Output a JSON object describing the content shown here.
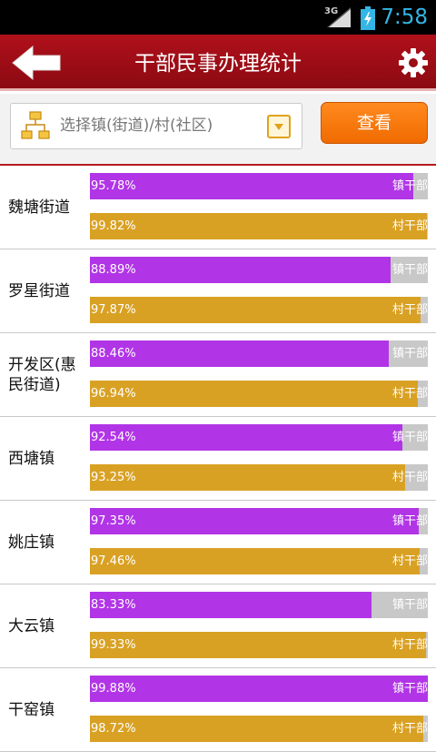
{
  "status_bar": {
    "network": "3G",
    "time": "7:58"
  },
  "header": {
    "title": "干部民事办理统计",
    "back_icon": "arrow-left-icon",
    "settings_icon": "gear-icon"
  },
  "filter": {
    "placeholder": "选择镇(街道)/村(社区)",
    "query_button": "查看"
  },
  "colors": {
    "title_bar": "#9c0d16",
    "town_bar": "#b135e6",
    "village_bar": "#d9a124",
    "query_button": "#f57c0e"
  },
  "legend": {
    "town": "镇干部",
    "village": "村干部"
  },
  "rows": [
    {
      "name": "魏塘街道",
      "town_pct": "95.78%",
      "town_value": 95.78,
      "village_pct": "99.82%",
      "village_value": 99.82
    },
    {
      "name": "罗星街道",
      "town_pct": "88.89%",
      "town_value": 88.89,
      "village_pct": "97.87%",
      "village_value": 97.87
    },
    {
      "name": "开发区(惠民街道)",
      "town_pct": "88.46%",
      "town_value": 88.46,
      "village_pct": "96.94%",
      "village_value": 96.94
    },
    {
      "name": "西塘镇",
      "town_pct": "92.54%",
      "town_value": 92.54,
      "village_pct": "93.25%",
      "village_value": 93.25
    },
    {
      "name": "姚庄镇",
      "town_pct": "97.35%",
      "town_value": 97.35,
      "village_pct": "97.46%",
      "village_value": 97.46
    },
    {
      "name": "大云镇",
      "town_pct": "83.33%",
      "town_value": 83.33,
      "village_pct": "99.33%",
      "village_value": 99.33
    },
    {
      "name": "干窑镇",
      "town_pct": "99.88%",
      "town_value": 99.88,
      "village_pct": "98.72%",
      "village_value": 98.72
    }
  ]
}
